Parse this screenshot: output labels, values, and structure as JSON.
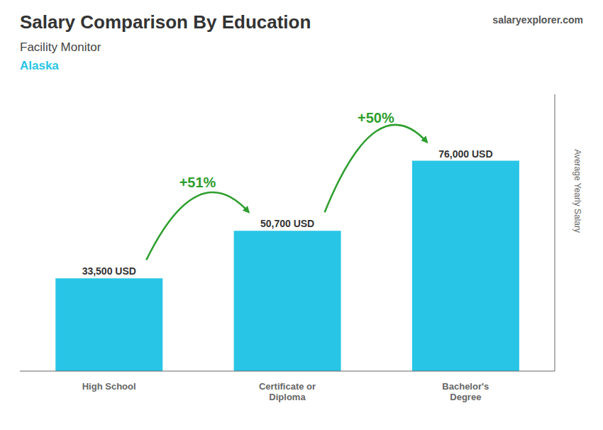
{
  "chart_data": {
    "type": "bar",
    "title": "Salary Comparison By Education",
    "subtitle": "Facility Monitor",
    "ylabel": "Average Yearly Salary",
    "categories": [
      "High School",
      "Certificate or\nDiploma",
      "Bachelor's\nDegree"
    ],
    "values": [
      33500,
      50700,
      76000
    ],
    "value_labels": [
      "33,500 USD",
      "50,700 USD",
      "76,000 USD"
    ],
    "data_labels": true,
    "color": "#29c5e6",
    "ylim": [
      0,
      100000
    ],
    "tick_labels": "x",
    "grid": false,
    "annotations": [
      {
        "text": "Alaska"
      },
      {
        "text": "salaryexplorer.com"
      },
      {
        "text": "+51%",
        "from": "High School",
        "to": "Certificate or\nDiploma"
      },
      {
        "text": "+50%",
        "from": "Certificate or\nDiploma",
        "to": "Bachelor's\nDegree"
      }
    ]
  }
}
